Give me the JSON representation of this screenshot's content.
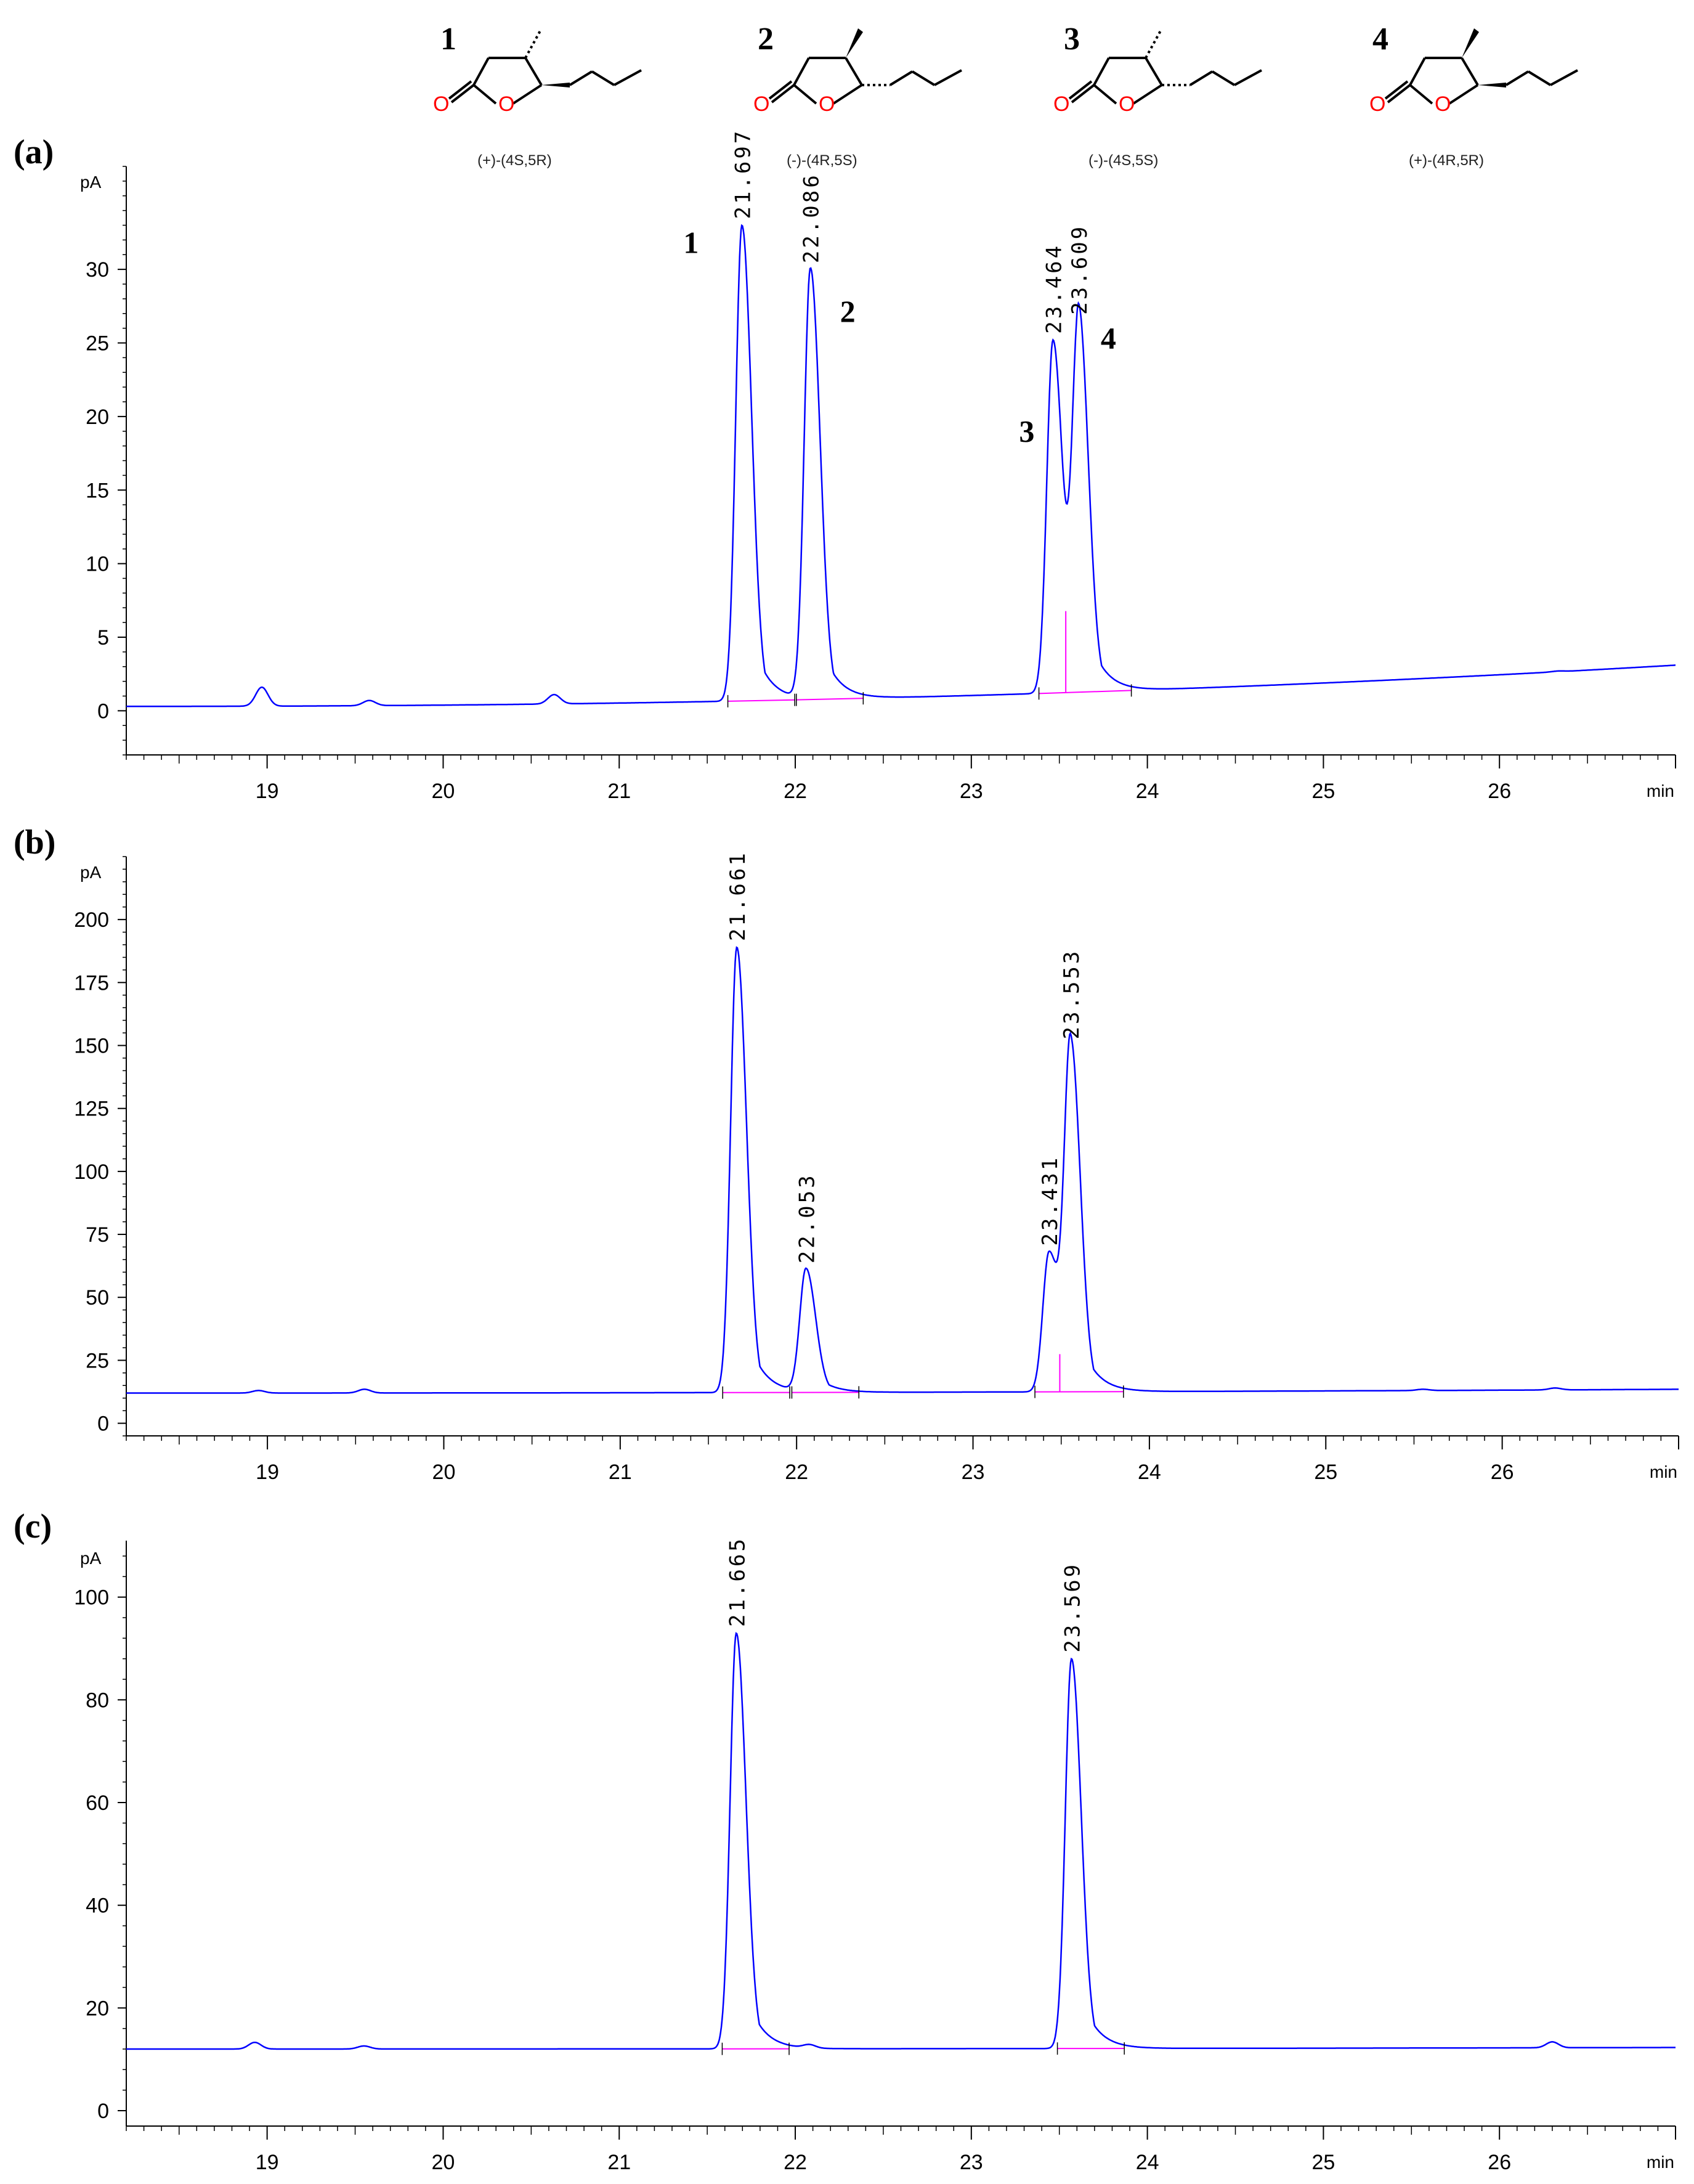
{
  "compounds": [
    {
      "number": "1",
      "stereo": "(+)-(4S,5R)"
    },
    {
      "number": "2",
      "stereo": "(-)-(4R,5S)"
    },
    {
      "number": "3",
      "stereo": "(-)-(4S,5S)"
    },
    {
      "number": "4",
      "stereo": "(+)-(4R,5R)"
    }
  ],
  "colors": {
    "trace": "#0000ff",
    "baseline": "#ff00ff",
    "atom_o": "#ff0000",
    "axis": "#000000"
  },
  "chart_data": [
    {
      "type": "line",
      "panel_label": "(a)",
      "y_unit": "pA",
      "x_unit": "min",
      "xlim": [
        18.2,
        27.0
      ],
      "ylim": [
        -3,
        37
      ],
      "x_ticks": [
        "19",
        "20",
        "21",
        "22",
        "23",
        "24",
        "25",
        "26"
      ],
      "y_ticks": [
        "0",
        "5",
        "10",
        "15",
        "20",
        "25",
        "30"
      ],
      "baseline_start": 0.3,
      "baseline_end": 3.1,
      "peaks": [
        {
          "rt": 21.697,
          "height": 33.0,
          "label": "21.697",
          "id": "1"
        },
        {
          "rt": 22.086,
          "height": 30.0,
          "label": "22.086",
          "id": "2"
        },
        {
          "rt": 23.464,
          "height": 25.2,
          "label": "23.464",
          "id": "3"
        },
        {
          "rt": 23.609,
          "height": 26.5,
          "label": "23.609",
          "id": "4"
        }
      ],
      "minor_peaks": [
        {
          "rt": 18.97,
          "height": 1.6
        },
        {
          "rt": 19.58,
          "height": 0.7
        },
        {
          "rt": 20.63,
          "height": 1.1
        },
        {
          "rt": 26.33,
          "height": 2.7
        }
      ]
    },
    {
      "type": "line",
      "panel_label": "(b)",
      "y_unit": "pA",
      "x_unit": "min",
      "xlim": [
        18.2,
        27.0
      ],
      "ylim": [
        -5,
        225
      ],
      "x_ticks": [
        "19",
        "20",
        "21",
        "22",
        "23",
        "24",
        "25",
        "26"
      ],
      "y_ticks": [
        "0",
        "25",
        "50",
        "75",
        "100",
        "125",
        "150",
        "175",
        "200"
      ],
      "baseline_start": 12.0,
      "baseline_end": 13.5,
      "peaks": [
        {
          "rt": 21.661,
          "height": 189,
          "label": "21.661"
        },
        {
          "rt": 22.053,
          "height": 61,
          "label": "22.053"
        },
        {
          "rt": 23.431,
          "height": 68,
          "label": "23.431"
        },
        {
          "rt": 23.553,
          "height": 150,
          "label": "23.553"
        }
      ],
      "minor_peaks": [
        {
          "rt": 18.95,
          "height": 13.0
        },
        {
          "rt": 19.55,
          "height": 13.5
        },
        {
          "rt": 25.55,
          "height": 13.5
        },
        {
          "rt": 26.3,
          "height": 14.0
        }
      ]
    },
    {
      "type": "line",
      "panel_label": "(c)",
      "y_unit": "pA",
      "x_unit": "min",
      "xlim": [
        18.2,
        27.0
      ],
      "ylim": [
        -3,
        111
      ],
      "x_ticks": [
        "19",
        "20",
        "21",
        "22",
        "23",
        "24",
        "25",
        "26"
      ],
      "y_ticks": [
        "0",
        "20",
        "40",
        "60",
        "80",
        "100"
      ],
      "baseline_start": 12.0,
      "baseline_end": 12.3,
      "peaks": [
        {
          "rt": 21.665,
          "height": 93,
          "label": "21.665"
        },
        {
          "rt": 23.569,
          "height": 88,
          "label": "23.569"
        }
      ],
      "minor_peaks": [
        {
          "rt": 18.93,
          "height": 13.3
        },
        {
          "rt": 19.55,
          "height": 12.6
        },
        {
          "rt": 22.08,
          "height": 12.7
        },
        {
          "rt": 26.3,
          "height": 13.4
        }
      ]
    }
  ]
}
